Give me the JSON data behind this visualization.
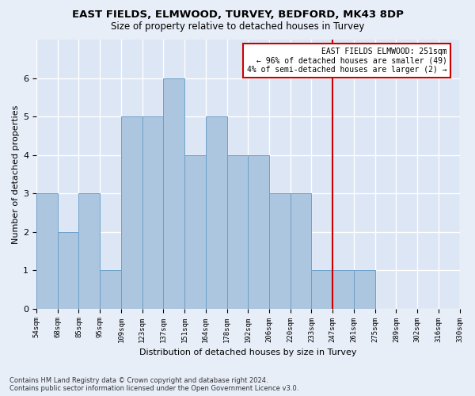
{
  "title_line1": "EAST FIELDS, ELMWOOD, TURVEY, BEDFORD, MK43 8DP",
  "title_line2": "Size of property relative to detached houses in Turvey",
  "xlabel": "Distribution of detached houses by size in Turvey",
  "ylabel": "Number of detached properties",
  "footnote": "Contains HM Land Registry data © Crown copyright and database right 2024.\nContains public sector information licensed under the Open Government Licence v3.0.",
  "bar_values": [
    3,
    2,
    3,
    1,
    5,
    5,
    6,
    4,
    5,
    4,
    4,
    3,
    3,
    1,
    1,
    1,
    0,
    0,
    0,
    0
  ],
  "x_labels": [
    "54sqm",
    "68sqm",
    "85sqm",
    "95sqm",
    "109sqm",
    "123sqm",
    "137sqm",
    "151sqm",
    "164sqm",
    "178sqm",
    "192sqm",
    "206sqm",
    "220sqm",
    "233sqm",
    "247sqm",
    "261sqm",
    "275sqm",
    "289sqm",
    "302sqm",
    "316sqm",
    "330sqm"
  ],
  "bar_color": "#adc6e0",
  "bar_edge_color": "#6b9fc8",
  "background_color": "#dce6f5",
  "grid_color": "#ffffff",
  "fig_bg_color": "#e8eef8",
  "vline_x_index": 14,
  "vline_color": "#cc0000",
  "annotation_title": "EAST FIELDS ELMWOOD: 251sqm",
  "annotation_line1": "← 96% of detached houses are smaller (49)",
  "annotation_line2": "4% of semi-detached houses are larger (2) →",
  "annotation_box_color": "#cc0000",
  "ylim": [
    0,
    7
  ],
  "yticks": [
    0,
    1,
    2,
    3,
    4,
    5,
    6
  ],
  "title1_fontsize": 9,
  "title2_fontsize": 8.5,
  "ylabel_fontsize": 8,
  "xlabel_fontsize": 8
}
